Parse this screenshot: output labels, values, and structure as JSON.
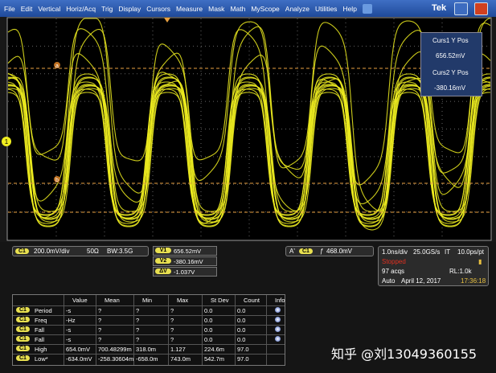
{
  "menu": [
    "File",
    "Edit",
    "Vertical",
    "Horiz/Acq",
    "Trig",
    "Display",
    "Cursors",
    "Measure",
    "Mask",
    "Math",
    "MyScope",
    "Analyze",
    "Utilities",
    "Help"
  ],
  "brand": "Tek",
  "cursor_readout": {
    "curs1_label": "Curs1 Y Pos",
    "curs1_value": "656.52mV",
    "curs2_label": "Curs2 Y Pos",
    "curs2_value": "-380.16mV"
  },
  "markers": {
    "channel": "1",
    "cursor_a": "a",
    "cursor_b": "b"
  },
  "channel": {
    "source": "C1",
    "scale": "200.0mV/div",
    "impedance": "50Ω",
    "bandwidth": "BW:3.5G"
  },
  "cursors": [
    {
      "label": "V1",
      "value": "656.52mV"
    },
    {
      "label": "V2",
      "value": "-380.16mV"
    },
    {
      "label": "ΔV",
      "value": "-1.037V"
    }
  ],
  "trigger": {
    "mode": "A'",
    "source": "C1",
    "level": "468.0mV"
  },
  "acquisition": {
    "timebase": "1.0ns/div",
    "sample_rate": "25.0GS/s",
    "mode": "IT",
    "resolution": "10.0ps/pt",
    "state": "Stopped",
    "acqs": "97 acqs",
    "record_length": "RL:1.0k",
    "trigger_mode": "Auto",
    "date": "April 12, 2017",
    "time": "17:36:18"
  },
  "measurements": {
    "header": [
      "Value",
      "Mean",
      "Min",
      "Max",
      "St Dev",
      "Count",
      "Info"
    ],
    "rows": [
      {
        "source": "C1",
        "name": "Period",
        "cells": [
          "-s",
          "?",
          "?",
          "?",
          "0.0",
          "0.0"
        ]
      },
      {
        "source": "C1",
        "name": "Freq",
        "cells": [
          "-Hz",
          "?",
          "?",
          "?",
          "0.0",
          "0.0"
        ]
      },
      {
        "source": "C1",
        "name": "Fall",
        "cells": [
          "-s",
          "?",
          "?",
          "?",
          "0.0",
          "0.0"
        ]
      },
      {
        "source": "C1",
        "name": "Fall",
        "cells": [
          "-s",
          "?",
          "?",
          "?",
          "0.0",
          "0.0"
        ]
      },
      {
        "source": "C1",
        "name": "High",
        "cells": [
          "654.0mV",
          "700.48299m",
          "318.0m",
          "1.127",
          "224.6m",
          "97.0"
        ]
      },
      {
        "source": "C1",
        "name": "Low*",
        "cells": [
          "-634.0mV",
          "-258.30604m",
          "-658.0m",
          "743.0m",
          "542.7m",
          "97.0"
        ]
      }
    ]
  },
  "watermark": "知乎 @刘13049360155"
}
